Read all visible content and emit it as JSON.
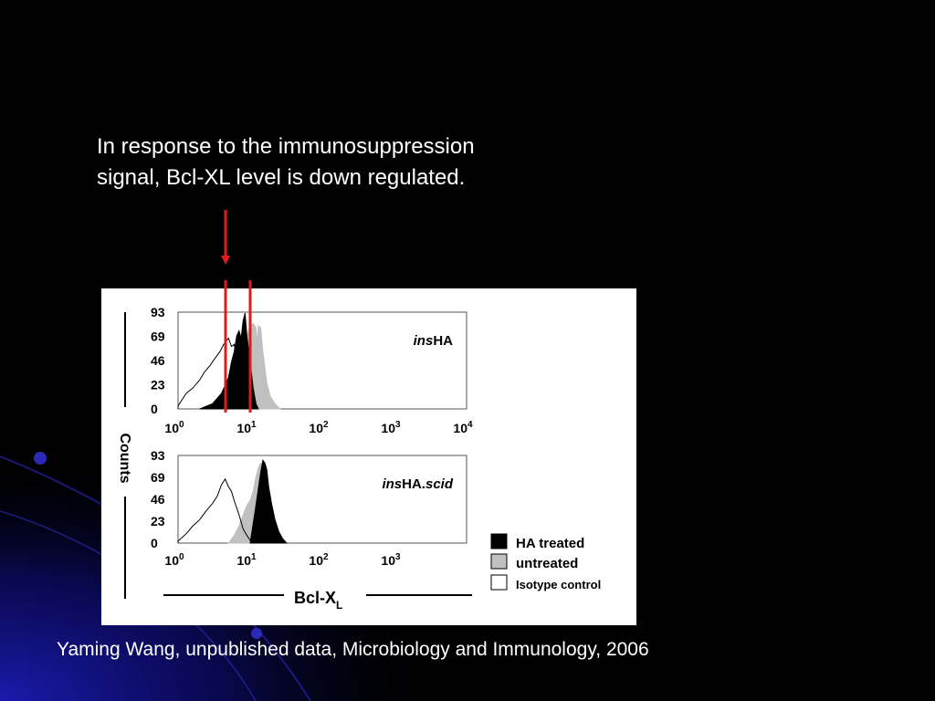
{
  "slide": {
    "headline_line1": "In response to the immunosuppression",
    "headline_line2": "signal, Bcl-XL level is down regulated.",
    "citation": "Yaming Wang, unpublished data, Microbiology and Immunology, 2006",
    "background_color": "#000000",
    "accent_color": "#1a1aa8",
    "marker_color": "#e11b1b"
  },
  "chart_data": [
    {
      "type": "area",
      "title": "insHA",
      "title_italic_part": "ins",
      "title_plain_part": "HA",
      "xscale": "log",
      "xlim": [
        1,
        10000
      ],
      "ylim": [
        0,
        93
      ],
      "yticks": [
        "93",
        "69",
        "46",
        "23",
        "0"
      ],
      "xtick_bases": [
        "10",
        "10",
        "10",
        "10",
        "10"
      ],
      "xtick_exps": [
        "0",
        "1",
        "2",
        "3",
        "4"
      ],
      "series": [
        {
          "name": "HA treated",
          "color": "#000000",
          "x": [
            2,
            3,
            4,
            5,
            5.5,
            6,
            6.5,
            7,
            7.5,
            8,
            8.5,
            9,
            10,
            11,
            12,
            13
          ],
          "y": [
            0,
            5,
            15,
            30,
            45,
            55,
            70,
            75,
            68,
            85,
            92,
            70,
            45,
            20,
            5,
            0
          ]
        },
        {
          "name": "untreated",
          "color": "#c0c0c0",
          "x": [
            5,
            6,
            7,
            8,
            9,
            10,
            11,
            12,
            12.5,
            13,
            14,
            15,
            16,
            17,
            19,
            22,
            26
          ],
          "y": [
            0,
            15,
            35,
            55,
            70,
            80,
            82,
            78,
            62,
            80,
            78,
            55,
            40,
            25,
            12,
            5,
            0
          ]
        },
        {
          "name": "Isotype control",
          "color": "#000000",
          "x": [
            1,
            1.3,
            1.6,
            2,
            2.3,
            2.8,
            3.2,
            3.8,
            4.3,
            5,
            5.5,
            6,
            6.5,
            7,
            8,
            9,
            10,
            12
          ],
          "y": [
            3,
            15,
            20,
            28,
            35,
            42,
            48,
            55,
            62,
            68,
            60,
            62,
            48,
            35,
            20,
            10,
            3,
            0
          ]
        }
      ]
    },
    {
      "type": "area",
      "title": "insHA.scid",
      "title_italic_part": "ins",
      "title_plain_part": "HA.",
      "title_italic_suffix": "scid",
      "xscale": "log",
      "xlim": [
        1,
        10000
      ],
      "ylim": [
        0,
        93
      ],
      "yticks": [
        "93",
        "69",
        "46",
        "23",
        "0"
      ],
      "xtick_bases": [
        "10",
        "10",
        "10",
        "10"
      ],
      "xtick_exps": [
        "0",
        "1",
        "2",
        "3"
      ],
      "series": [
        {
          "name": "HA treated",
          "color": "#000000",
          "x": [
            10,
            12,
            14,
            15,
            16,
            17,
            18,
            20,
            22,
            25,
            28,
            32
          ],
          "y": [
            0,
            40,
            75,
            88,
            85,
            78,
            60,
            40,
            25,
            12,
            5,
            0
          ]
        },
        {
          "name": "untreated",
          "color": "#c0c0c0",
          "x": [
            5,
            6,
            7,
            8,
            9,
            10,
            11,
            12,
            13,
            14,
            15,
            16,
            18,
            20,
            25
          ],
          "y": [
            0,
            8,
            18,
            30,
            40,
            45,
            55,
            70,
            80,
            85,
            82,
            70,
            45,
            20,
            0
          ]
        },
        {
          "name": "Isotype control",
          "color": "#000000",
          "x": [
            1,
            1.3,
            1.6,
            2,
            2.5,
            3,
            3.5,
            4,
            4.5,
            5,
            5.5,
            6,
            7,
            8,
            9,
            10,
            12
          ],
          "y": [
            2,
            10,
            18,
            25,
            35,
            42,
            50,
            62,
            68,
            60,
            55,
            45,
            30,
            15,
            8,
            3,
            0
          ]
        }
      ]
    }
  ],
  "figure": {
    "ylabel": "Counts",
    "xlabel_main": "Bcl-X",
    "xlabel_sub": "L",
    "legend": [
      {
        "label": "HA treated",
        "fill": "#000000"
      },
      {
        "label": "untreated",
        "fill": "#c0c0c0"
      },
      {
        "label": "Isotype control",
        "fill": "#ffffff"
      }
    ]
  }
}
